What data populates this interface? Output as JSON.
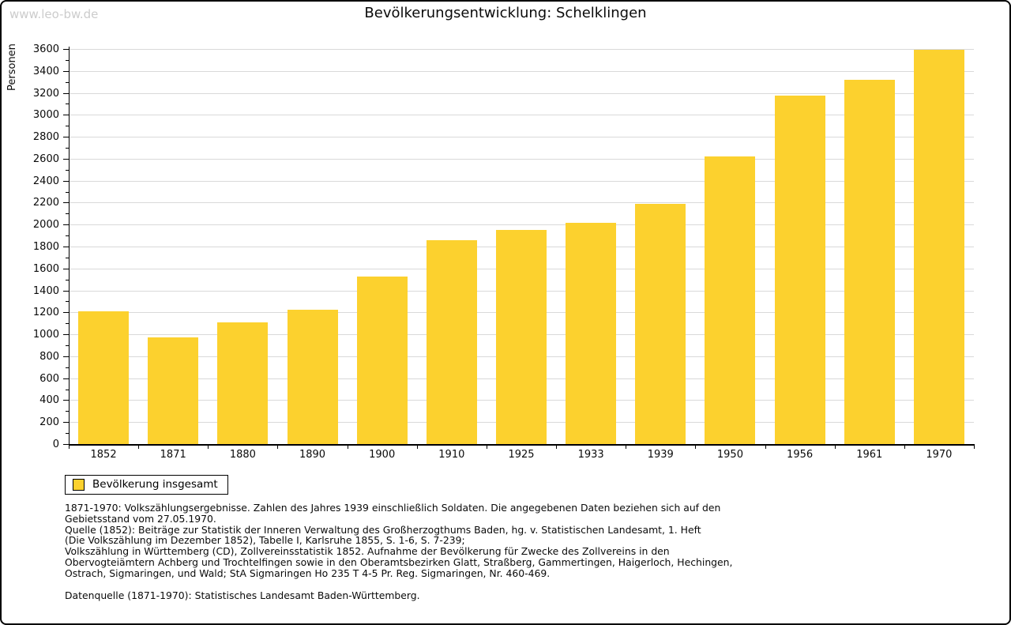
{
  "watermark": "www.leo-bw.de",
  "title": "Bevölkerungsentwicklung: Schelklingen",
  "chart_data": {
    "type": "bar",
    "title": "Bevölkerungsentwicklung: Schelklingen",
    "xlabel": "",
    "ylabel": "Personen",
    "categories": [
      "1852",
      "1871",
      "1880",
      "1890",
      "1900",
      "1910",
      "1925",
      "1933",
      "1939",
      "1950",
      "1956",
      "1961",
      "1970"
    ],
    "values": [
      1210,
      970,
      1110,
      1225,
      1530,
      1860,
      1950,
      2015,
      2190,
      2620,
      3175,
      3320,
      3595
    ],
    "ylim": [
      0,
      3600
    ],
    "ytick_step": 200,
    "yminor_tick_step": 100,
    "grid": true,
    "bar_color": "#fcd12e",
    "gridline_color": "#d9d9d9",
    "legend_position": "bottom-left",
    "legend": [
      {
        "label": "Bevölkerung insgesamt",
        "color": "#fcd12e"
      }
    ]
  },
  "footer": {
    "notes": "1871-1970: Volkszählungsergebnisse. Zahlen des Jahres 1939 einschließlich Soldaten. Die angegebenen Daten beziehen sich auf den\nGebietsstand vom 27.05.1970.\nQuelle (1852): Beiträge zur Statistik der Inneren Verwaltung des Großherzogthums Baden, hg. v. Statistischen Landesamt, 1. Heft\n(Die Volkszählung im Dezember 1852), Tabelle I, Karlsruhe 1855, S. 1-6, S. 7-239;\nVolkszählung in Württemberg (CD), Zollvereinsstatistik 1852. Aufnahme der Bevölkerung für Zwecke des Zollvereins in den\nObervogteiämtern Achberg und Trochtelfingen sowie in den Oberamtsbezirken Glatt, Straßberg, Gammertingen, Haigerloch, Hechingen,\nOstrach, Sigmaringen, und Wald; StA Sigmaringen Ho 235 T 4-5 Pr. Reg. Sigmaringen, Nr. 460-469.",
    "datasource": "Datenquelle (1871-1970): Statistisches Landesamt Baden-Württemberg."
  }
}
